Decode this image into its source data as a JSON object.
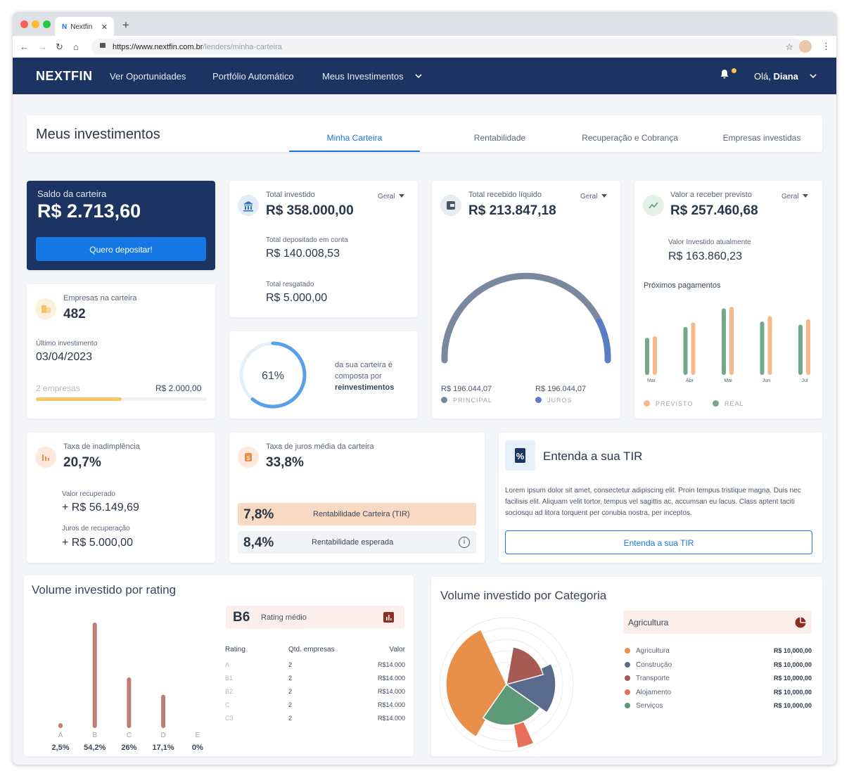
{
  "browser": {
    "tab_title": "Nextfin",
    "tab_favicon": "N",
    "url_host": "https://www.nextfin.com.br",
    "url_path": "/lenders/minha-carteira"
  },
  "header": {
    "logo": "NEXTFIN",
    "nav": [
      "Ver Oportunidades",
      "Portfólio Automático",
      "Meus Investimentos"
    ],
    "greeting": "Olá,",
    "user": "Diana"
  },
  "page": {
    "title": "Meus investimentos",
    "tabs": [
      "Minha Carteira",
      "Rentabilidade",
      "Recuperação e Cobrança",
      "Empresas investidas"
    ]
  },
  "saldo": {
    "label": "Saldo da carteira",
    "value": "R$ 2.713,60",
    "button": "Quero depositar!"
  },
  "total_investido": {
    "label": "Total investido",
    "filter": "Geral",
    "value": "R$ 358.000,00",
    "dep_label": "Total depositado em conta",
    "dep_value": "R$ 140.008,53",
    "resg_label": "Total resgatado",
    "resg_value": "R$ 5.000,00"
  },
  "recebido": {
    "label": "Total recebido líquido",
    "filter": "Geral",
    "value": "R$ 213.847,18",
    "principal_value": "R$ 196.044,07",
    "principal_label": "PRINCIPAL",
    "juros_value": "R$ 196.044,07",
    "juros_label": "JUROS"
  },
  "receber": {
    "label": "Valor a receber previsto",
    "filter": "Geral",
    "value": "R$ 257.460,68",
    "atual_label": "Valor Investido atualmente",
    "atual_value": "R$ 163.860,23",
    "chart_title": "Próximos pagamentos",
    "legend_previsto": "PREVISTO",
    "legend_real": "REAL"
  },
  "empresas": {
    "label": "Empresas na carteira",
    "value": "482",
    "ult_label": "Último investimento",
    "ult_value": "03/04/2023",
    "foot_left": "2 empresas",
    "foot_right": "R$ 2.000,00",
    "progress": 0.5
  },
  "reinvest": {
    "percent": "61%",
    "percent_value": 61,
    "text": "da sua carteira é composta por",
    "bold": "reinvestimentos"
  },
  "inad": {
    "label": "Taxa de inadimplência",
    "value": "20,7%",
    "rec_label": "Valor recuperado",
    "rec_value": "+ R$ 56.149,69",
    "jur_label": "Juros de recuperação",
    "jur_value": "+ R$ 5.000,00"
  },
  "juros": {
    "label": "Taxa de juros média da carteira",
    "value": "33,8%",
    "tir_value": "7,8%",
    "tir_label": "Rentabilidade Carteira (TIR)",
    "esp_value": "8,4%",
    "esp_label": "Rentabilidade esperada"
  },
  "tir": {
    "title": "Entenda a sua TIR",
    "text": "Lorem ipsum dolor sit amet, consectetur adipiscing elit. Proin tempus tristique magna. Duis nec facilisis elit. Aliquam velit tortor, tempus vel sagittis ac, accumsan eu lacus. Class aptent taciti sociosqu ad litora torquent per conubia nostra, per inceptos.",
    "button": "Entenda a sua TIR"
  },
  "rating": {
    "title": "Volume investido por rating",
    "badge_value": "B6",
    "badge_label": "Rating médio",
    "table_headers": [
      "Rating",
      "Qtd. empresas",
      "Valor"
    ],
    "table_rows": [
      [
        "A",
        "2",
        "R$14.000"
      ],
      [
        "B1",
        "2",
        "R$14.000"
      ],
      [
        "B2",
        "2",
        "R$14.000"
      ],
      [
        "C",
        "2",
        "R$14.000"
      ],
      [
        "C3",
        "2",
        "R$14.000"
      ]
    ]
  },
  "categoria": {
    "title": "Volume investido por Categoria",
    "selected": "Agricultura",
    "items": [
      {
        "name": "Agricultura",
        "value": "R$ 10,000,00",
        "color": "#e8904a"
      },
      {
        "name": "Construção",
        "value": "R$ 10,000,00",
        "color": "#5a6a8c"
      },
      {
        "name": "Transporte",
        "value": "R$ 10,000,00",
        "color": "#a85a52"
      },
      {
        "name": "Alojamento",
        "value": "R$ 10,000,00",
        "color": "#e8705a"
      },
      {
        "name": "Serviços",
        "value": "R$ 10,000,00",
        "color": "#5f9a78"
      }
    ]
  },
  "colors": {
    "navy": "#1c3461",
    "blue": "#1577e3",
    "gauge": "#7a889e",
    "gauge_accent": "#5a7ec4",
    "previsto": "#f6b98a",
    "real": "#73a98a",
    "rating_bar": "#c07d72"
  },
  "chart_data": [
    {
      "type": "bar",
      "title": "Próximos pagamentos",
      "categories": [
        "Mar",
        "Abr",
        "Mai",
        "Jun",
        "Jul"
      ],
      "series": [
        {
          "name": "REAL",
          "values": [
            48,
            62,
            86,
            69,
            65
          ]
        },
        {
          "name": "PREVISTO",
          "values": [
            50,
            68,
            88,
            76,
            72
          ]
        }
      ],
      "legend": "bottom"
    },
    {
      "type": "bar",
      "title": "Volume investido por rating",
      "categories": [
        "A",
        "B",
        "C",
        "D",
        "E"
      ],
      "values": [
        2.5,
        54.2,
        26,
        17.1,
        0
      ],
      "labels": [
        "2,5%",
        "54,2%",
        "26%",
        "17,1%",
        "0%"
      ]
    },
    {
      "type": "pie",
      "title": "Volume investido por Categoria",
      "categories": [
        "Agricultura",
        "Construção",
        "Transporte",
        "Alojamento",
        "Serviços"
      ],
      "values": [
        1,
        1,
        1,
        1,
        1
      ]
    }
  ]
}
